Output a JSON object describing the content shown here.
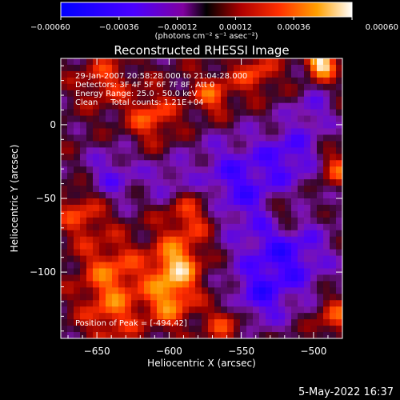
{
  "chart_data": {
    "type": "heatmap",
    "title": "Reconstructed RHESSI Image",
    "xlabel": "Heliocentric X (arcsec)",
    "ylabel": "Heliocentric Y (arcsec)",
    "xlim": [
      -675,
      -480
    ],
    "ylim": [
      -145,
      45
    ],
    "xticks": [
      -650,
      -600,
      -550,
      -500
    ],
    "xtick_labels": [
      "−650",
      "−600",
      "−550",
      "−500"
    ],
    "yticks": [
      0,
      -50,
      -100
    ],
    "ytick_labels": [
      "0",
      "−50",
      "−100"
    ],
    "colorbar": {
      "min": -0.0006,
      "max": 0.0006,
      "ticks": [
        -0.0006,
        -0.00036,
        -0.00012,
        0.00012,
        0.00036,
        0.0006
      ],
      "tick_labels": [
        "−0.00060",
        "−0.00036",
        "−0.00012",
        "0.00012",
        "0.00036",
        "0.00060"
      ],
      "unit": "(photons cm⁻² s⁻¹ asec⁻²)"
    },
    "annotations": [
      "29-Jan-2007 20:58:28.000 to 21:04:28.000",
      "Detectors: 3F 4F 5F 6F 7F 8F, Att 0",
      "Energy Range: 25.0 - 50.0 keV",
      "Clean     Total counts: 1.21E+04"
    ],
    "peak_label": "Position of Peak = [-494,42]",
    "peak": {
      "x": -494,
      "y": 42
    },
    "features": [
      {
        "x": -494,
        "y": 42,
        "r": 7,
        "a": 1.0
      },
      {
        "x": -595,
        "y": -95,
        "r": 12,
        "a": 0.75
      },
      {
        "x": -585,
        "y": -60,
        "r": 14,
        "a": 0.55
      },
      {
        "x": -600,
        "y": -120,
        "r": 12,
        "a": 0.6
      },
      {
        "x": -640,
        "y": -100,
        "r": 16,
        "a": 0.5
      },
      {
        "x": -660,
        "y": -60,
        "r": 12,
        "a": 0.45
      },
      {
        "x": -612,
        "y": 5,
        "r": 12,
        "a": 0.5
      },
      {
        "x": -570,
        "y": 20,
        "r": 10,
        "a": 0.5
      },
      {
        "x": -645,
        "y": 30,
        "r": 12,
        "a": 0.4
      },
      {
        "x": -540,
        "y": 35,
        "r": 10,
        "a": 0.45
      },
      {
        "x": -485,
        "y": -30,
        "r": 8,
        "a": 0.5
      },
      {
        "x": -485,
        "y": -130,
        "r": 10,
        "a": 0.45
      },
      {
        "x": -520,
        "y": -60,
        "r": 9,
        "a": 0.4
      },
      {
        "x": -560,
        "y": -135,
        "r": 10,
        "a": 0.45
      },
      {
        "x": -640,
        "y": -130,
        "r": 14,
        "a": 0.4
      },
      {
        "x": -555,
        "y": -40,
        "r": 22,
        "a": -0.55
      },
      {
        "x": -520,
        "y": -90,
        "r": 22,
        "a": -0.6
      },
      {
        "x": -515,
        "y": -20,
        "r": 15,
        "a": -0.45
      },
      {
        "x": -640,
        "y": -35,
        "r": 14,
        "a": -0.4
      },
      {
        "x": -600,
        "y": -40,
        "r": 11,
        "a": -0.35
      },
      {
        "x": -540,
        "y": -120,
        "r": 14,
        "a": -0.4
      },
      {
        "x": -500,
        "y": 10,
        "r": 10,
        "a": -0.35
      }
    ]
  },
  "footer": {
    "timestamp": "5-May-2022 16:37"
  }
}
